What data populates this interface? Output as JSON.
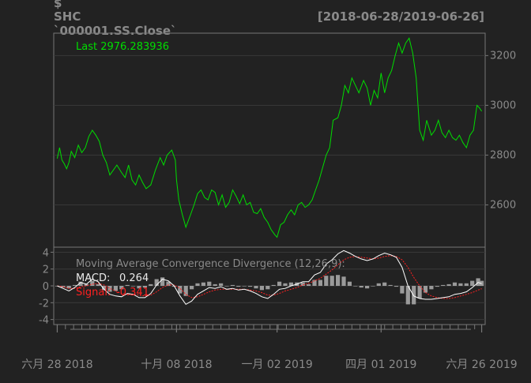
{
  "header": {
    "symbol": "$",
    "name": "SHC",
    "series": "`000001.SS.Close`",
    "date_range": "[2018-06-28/2019-06-26]"
  },
  "colors": {
    "background": "#222222",
    "frame": "#777777",
    "grid": "#3a3a3a",
    "text": "#8a8a8a",
    "price": "#00dd00",
    "macd": "#ffffff",
    "signal": "#ff2020",
    "histogram": "#9a9a9a",
    "label_white": "#eaeaea"
  },
  "chart_data": [
    {
      "type": "line",
      "panel": "price",
      "legend": "Last 2976.283936",
      "y_ticks": [
        2600,
        2800,
        3000,
        3200
      ],
      "ylim": [
        2430,
        3290
      ],
      "x_tick_labels": [
        "六月 28 2018",
        "十月 08 2018",
        "一月 02 2019",
        "四月 01 2019",
        "六月 26 2019"
      ],
      "x_tick_days": [
        0,
        102,
        188,
        277,
        363
      ],
      "xlim": [
        -3,
        366
      ],
      "grid": true,
      "series": [
        {
          "x": [
            0,
            2,
            4,
            6,
            8,
            10,
            12,
            15,
            18,
            21,
            24,
            27,
            30,
            33,
            36,
            39,
            42,
            45,
            48,
            51,
            55,
            58,
            61,
            64,
            67,
            70,
            73,
            76,
            80,
            84,
            88,
            91,
            94,
            98,
            101,
            102,
            104,
            107,
            110,
            114,
            117,
            120,
            123,
            126,
            129,
            132,
            135,
            138,
            141,
            144,
            147,
            150,
            153,
            156,
            159,
            162,
            165,
            168,
            171,
            174,
            177,
            180,
            183,
            186,
            188,
            191,
            194,
            197,
            200,
            203,
            206,
            209,
            212,
            215,
            218,
            221,
            224,
            227,
            230,
            233,
            236,
            240,
            243,
            246,
            249,
            252,
            255,
            258,
            262,
            265,
            268,
            271,
            274,
            277,
            280,
            283,
            286,
            289,
            292,
            295,
            298,
            301,
            304,
            307,
            310,
            313,
            316,
            320,
            323,
            326,
            329,
            332,
            335,
            338,
            341,
            344,
            347,
            350,
            353,
            356,
            359,
            361,
            363
          ],
          "values": [
            2786,
            2830,
            2780,
            2765,
            2745,
            2770,
            2815,
            2790,
            2840,
            2810,
            2830,
            2875,
            2900,
            2880,
            2855,
            2800,
            2770,
            2720,
            2740,
            2760,
            2730,
            2710,
            2760,
            2700,
            2680,
            2720,
            2690,
            2665,
            2680,
            2740,
            2790,
            2760,
            2800,
            2820,
            2780,
            2700,
            2620,
            2560,
            2510,
            2560,
            2600,
            2645,
            2660,
            2630,
            2620,
            2660,
            2650,
            2600,
            2640,
            2590,
            2610,
            2660,
            2635,
            2605,
            2640,
            2600,
            2610,
            2570,
            2565,
            2585,
            2550,
            2530,
            2500,
            2480,
            2470,
            2520,
            2530,
            2560,
            2580,
            2560,
            2600,
            2610,
            2590,
            2600,
            2620,
            2660,
            2700,
            2750,
            2800,
            2830,
            2940,
            2950,
            3000,
            3080,
            3050,
            3110,
            3080,
            3050,
            3100,
            3070,
            3000,
            3060,
            3030,
            3130,
            3050,
            3110,
            3140,
            3200,
            3250,
            3210,
            3250,
            3270,
            3210,
            3110,
            2900,
            2860,
            2940,
            2880,
            2900,
            2940,
            2890,
            2870,
            2900,
            2870,
            2860,
            2880,
            2850,
            2830,
            2880,
            2900,
            3000,
            2990,
            2976
          ]
        }
      ]
    },
    {
      "type": "line",
      "panel": "indicator",
      "title": "Moving Average Convergence Divergence (12,26,9):",
      "macd_label": "MACD:",
      "macd_value": "0.264",
      "signal_label": "Signal:",
      "signal_value": "-0.341",
      "y_ticks": [
        4,
        2,
        0,
        -2,
        -4
      ],
      "ylim": [
        -4.6,
        4.6
      ],
      "grid": true,
      "x": [
        0,
        5,
        10,
        15,
        20,
        25,
        30,
        35,
        40,
        45,
        50,
        55,
        60,
        65,
        70,
        75,
        80,
        85,
        90,
        95,
        100,
        105,
        110,
        115,
        120,
        125,
        130,
        135,
        140,
        145,
        150,
        155,
        160,
        165,
        170,
        175,
        180,
        185,
        190,
        195,
        200,
        205,
        210,
        215,
        220,
        225,
        230,
        235,
        240,
        245,
        250,
        255,
        260,
        265,
        270,
        275,
        280,
        285,
        290,
        295,
        300,
        305,
        310,
        315,
        320,
        325,
        330,
        335,
        340,
        345,
        350,
        355,
        360,
        363
      ],
      "series": [
        {
          "name": "MACD",
          "values": [
            0.0,
            -0.3,
            -0.6,
            -0.2,
            0.4,
            0.2,
            0.8,
            0.5,
            -0.4,
            -1.0,
            -1.2,
            -1.3,
            -0.9,
            -1.0,
            -1.4,
            -1.4,
            -0.9,
            0.1,
            0.8,
            0.6,
            0.0,
            -1.2,
            -2.2,
            -1.8,
            -1.0,
            -0.6,
            -0.2,
            -0.3,
            -0.1,
            -0.4,
            -0.3,
            -0.5,
            -0.4,
            -0.6,
            -0.9,
            -1.3,
            -1.5,
            -1.0,
            -0.4,
            -0.3,
            0.0,
            0.2,
            0.5,
            0.5,
            1.3,
            1.6,
            2.6,
            3.1,
            3.8,
            4.2,
            3.9,
            3.5,
            3.2,
            3.0,
            3.2,
            3.6,
            3.9,
            3.7,
            3.4,
            2.2,
            0.0,
            -1.2,
            -1.5,
            -1.6,
            -1.6,
            -1.5,
            -1.4,
            -1.3,
            -1.0,
            -0.9,
            -0.7,
            -0.2,
            0.4,
            0.26
          ]
        },
        {
          "name": "Signal",
          "values": [
            0.0,
            -0.1,
            -0.3,
            -0.3,
            -0.1,
            0.0,
            0.2,
            0.3,
            0.1,
            -0.3,
            -0.6,
            -0.9,
            -1.0,
            -1.0,
            -1.1,
            -1.2,
            -1.1,
            -0.7,
            -0.2,
            0.1,
            0.1,
            -0.3,
            -1.0,
            -1.4,
            -1.3,
            -1.0,
            -0.7,
            -0.5,
            -0.4,
            -0.4,
            -0.4,
            -0.4,
            -0.4,
            -0.5,
            -0.6,
            -0.8,
            -1.1,
            -1.1,
            -0.9,
            -0.6,
            -0.4,
            -0.2,
            0.1,
            0.3,
            0.6,
            0.9,
            1.4,
            1.9,
            2.5,
            3.1,
            3.4,
            3.5,
            3.4,
            3.3,
            3.2,
            3.3,
            3.5,
            3.6,
            3.5,
            3.1,
            2.2,
            1.0,
            0.0,
            -0.8,
            -1.2,
            -1.4,
            -1.5,
            -1.5,
            -1.4,
            -1.2,
            -1.0,
            -0.8,
            -0.5,
            -0.34
          ]
        }
      ]
    }
  ]
}
